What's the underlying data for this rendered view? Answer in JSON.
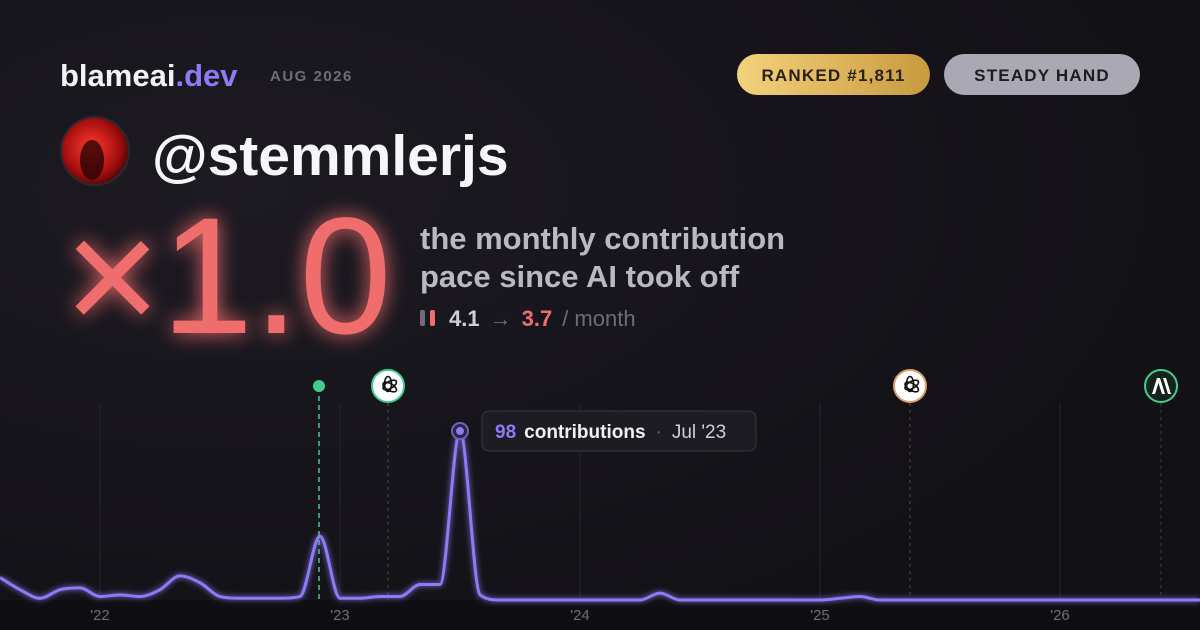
{
  "header": {
    "brand": "blameai",
    "brand_tld": ".dev",
    "date": "AUG 2026",
    "badges": [
      "RANKED #1,811",
      "STEADY HAND"
    ]
  },
  "profile": {
    "handle": "@stemmlerjs"
  },
  "headline": {
    "multiplier": "×1.0",
    "caption": [
      "the monthly contribution",
      "pace since AI took off"
    ],
    "before": 4.1,
    "arrow": "→",
    "after": 3.7,
    "unit": "/ month"
  },
  "chart_data": {
    "type": "line",
    "categories": [
      null,
      null,
      null,
      null,
      null,
      "'22",
      null,
      null,
      null,
      null,
      null,
      null,
      null,
      null,
      null,
      null,
      null,
      "'23",
      null,
      null,
      null,
      null,
      null,
      null,
      null,
      null,
      null,
      null,
      null,
      "'24",
      null,
      null,
      null,
      null,
      null,
      null,
      null,
      null,
      null,
      null,
      null,
      "'25",
      null,
      null,
      null,
      null,
      null,
      null,
      null,
      null,
      null,
      null,
      null,
      "'26",
      null,
      null,
      null,
      null,
      null,
      null,
      null
    ],
    "values": [
      13,
      6,
      1,
      6,
      7,
      2,
      3,
      2,
      6,
      14,
      10,
      2,
      1,
      1,
      1,
      2,
      37,
      1,
      1,
      2,
      2,
      9,
      9,
      98,
      3,
      0,
      0,
      0,
      0,
      0,
      0,
      0,
      0,
      4,
      0,
      0,
      0,
      0,
      0,
      0,
      0,
      0,
      1,
      2,
      0,
      0,
      0,
      0,
      0,
      0,
      0,
      0,
      0,
      0,
      0,
      0,
      0,
      0,
      0,
      0,
      0
    ],
    "color": "#8b7cf6",
    "ylim": [
      0,
      100
    ],
    "tooltip": {
      "label": "contributions",
      "separator": "·",
      "date": "Jul '23"
    }
  }
}
